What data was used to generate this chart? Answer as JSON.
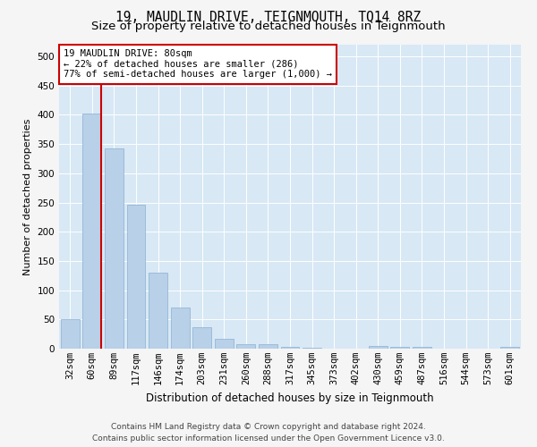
{
  "title": "19, MAUDLIN DRIVE, TEIGNMOUTH, TQ14 8RZ",
  "subtitle": "Size of property relative to detached houses in Teignmouth",
  "xlabel": "Distribution of detached houses by size in Teignmouth",
  "ylabel": "Number of detached properties",
  "categories": [
    "32sqm",
    "60sqm",
    "89sqm",
    "117sqm",
    "146sqm",
    "174sqm",
    "203sqm",
    "231sqm",
    "260sqm",
    "288sqm",
    "317sqm",
    "345sqm",
    "373sqm",
    "402sqm",
    "430sqm",
    "459sqm",
    "487sqm",
    "516sqm",
    "544sqm",
    "573sqm",
    "601sqm"
  ],
  "values": [
    50,
    403,
    342,
    246,
    130,
    70,
    36,
    17,
    7,
    7,
    3,
    1,
    0,
    0,
    5,
    3,
    3,
    0,
    0,
    0,
    3
  ],
  "bar_color": "#b8d0e8",
  "bar_edge_color": "#8ab0d0",
  "vline_color": "#cc0000",
  "annotation_text": "19 MAUDLIN DRIVE: 80sqm\n← 22% of detached houses are smaller (286)\n77% of semi-detached houses are larger (1,000) →",
  "annotation_box_facecolor": "#ffffff",
  "annotation_box_edgecolor": "#cc0000",
  "ylim": [
    0,
    520
  ],
  "yticks": [
    0,
    50,
    100,
    150,
    200,
    250,
    300,
    350,
    400,
    450,
    500
  ],
  "footer1": "Contains HM Land Registry data © Crown copyright and database right 2024.",
  "footer2": "Contains public sector information licensed under the Open Government Licence v3.0.",
  "bg_color": "#d8e8f5",
  "fig_bg_color": "#f5f5f5",
  "title_fontsize": 10.5,
  "subtitle_fontsize": 9.5,
  "xlabel_fontsize": 8.5,
  "ylabel_fontsize": 8,
  "tick_fontsize": 7.5,
  "annotation_fontsize": 7.5,
  "footer_fontsize": 6.5
}
